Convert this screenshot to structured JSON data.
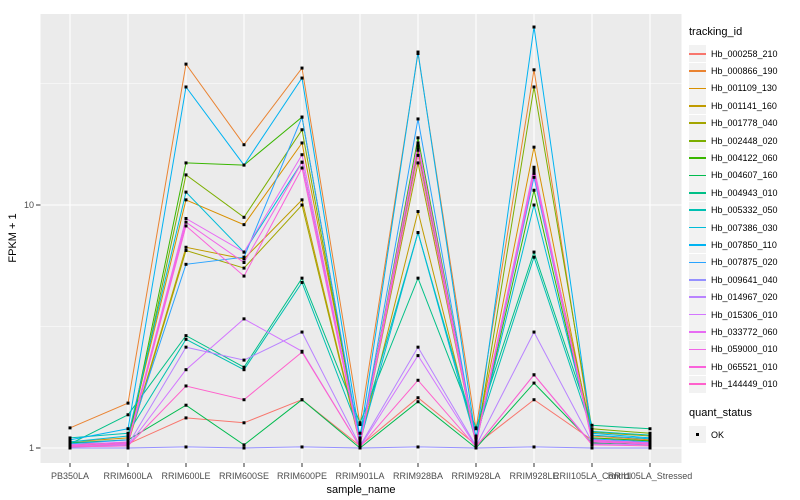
{
  "style": {
    "panel_bg": "#EBEBEB",
    "grid_color": "#FFFFFF",
    "axis_text_color": "#4D4D4D",
    "axis_title_color": "#000000",
    "tick_mark_color": "#333333",
    "legend_key_bg": "#F2F2F2",
    "point_color": "#000000"
  },
  "chart_data": {
    "type": "line",
    "xlabel": "sample_name",
    "ylabel": "FPKM + 1",
    "y_scale": "log10",
    "y_ticks": [
      1,
      10
    ],
    "y_minor_breaks": [
      3.162,
      31.62
    ],
    "ylim_log": [
      -0.062,
      1.79
    ],
    "grid": true,
    "legend_position": "right",
    "legend_title": "tracking_id",
    "point_legend_title": "quant_status",
    "point_legend_label": "OK",
    "categories": [
      "PB350LA",
      "RRIM600LA",
      "RRIM600LE",
      "RRIM600SE",
      "RRIM600PE",
      "RRIM901LA",
      "RRIM928BA",
      "RRIM928LA",
      "RRIM928LE",
      "RRII105LA_Control",
      "RRII105LA_Stressed"
    ],
    "series": [
      {
        "name": "Hb_000258_210",
        "color": "#F8766D",
        "values": [
          1.05,
          1.04,
          1.33,
          1.27,
          1.58,
          1.02,
          1.61,
          1.03,
          1.58,
          1.08,
          1.05
        ]
      },
      {
        "name": "Hb_000866_190",
        "color": "#EA8331",
        "values": [
          1.21,
          1.53,
          38.0,
          17.7,
          36.6,
          1.25,
          42.0,
          1.2,
          36.0,
          1.12,
          1.08
        ]
      },
      {
        "name": "Hb_001109_130",
        "color": "#D89000",
        "values": [
          1.06,
          1.1,
          10.5,
          8.3,
          18.0,
          1.08,
          17.0,
          1.09,
          17.3,
          1.1,
          1.07
        ]
      },
      {
        "name": "Hb_001141_160",
        "color": "#C09B00",
        "values": [
          1.03,
          1.05,
          6.7,
          6.0,
          10.5,
          1.05,
          9.4,
          1.05,
          14.0,
          1.07,
          1.05
        ]
      },
      {
        "name": "Hb_001778_040",
        "color": "#A3A500",
        "values": [
          1.02,
          1.04,
          6.5,
          5.5,
          10.0,
          1.04,
          14.9,
          1.04,
          13.5,
          1.16,
          1.12
        ]
      },
      {
        "name": "Hb_002448_020",
        "color": "#7CAE00",
        "values": [
          1.01,
          1.03,
          13.3,
          8.9,
          20.4,
          1.03,
          16.8,
          1.04,
          30.6,
          1.2,
          1.15
        ]
      },
      {
        "name": "Hb_004122_060",
        "color": "#39B600",
        "values": [
          1.02,
          1.05,
          14.9,
          14.6,
          23.0,
          1.03,
          18.9,
          1.05,
          11.5,
          1.1,
          1.07
        ]
      },
      {
        "name": "Hb_004607_160",
        "color": "#00BB4E",
        "values": [
          1.05,
          1.08,
          1.5,
          1.03,
          1.58,
          1.0,
          1.55,
          1.0,
          1.85,
          1.05,
          1.03
        ]
      },
      {
        "name": "Hb_004943_010",
        "color": "#00C087",
        "values": [
          1.04,
          1.37,
          2.9,
          2.15,
          5.0,
          1.27,
          5.0,
          1.21,
          6.4,
          1.24,
          1.2
        ]
      },
      {
        "name": "Hb_005332_050",
        "color": "#00C0B2",
        "values": [
          1.1,
          1.15,
          2.8,
          2.1,
          4.8,
          1.15,
          7.7,
          1.12,
          6.1,
          1.17,
          1.13
        ]
      },
      {
        "name": "Hb_007386_030",
        "color": "#00BCD8",
        "values": [
          1.06,
          1.12,
          11.3,
          6.4,
          15.0,
          1.06,
          7.7,
          1.06,
          10.0,
          1.13,
          1.09
        ]
      },
      {
        "name": "Hb_007850_110",
        "color": "#00B3F2",
        "values": [
          1.08,
          1.2,
          30.6,
          14.6,
          33.3,
          1.1,
          42.6,
          1.08,
          54.0,
          1.15,
          1.1
        ]
      },
      {
        "name": "Hb_007875_020",
        "color": "#29A3FF",
        "values": [
          1.04,
          1.08,
          5.7,
          6.1,
          23.0,
          1.05,
          22.6,
          1.04,
          13.0,
          1.09,
          1.06
        ]
      },
      {
        "name": "Hb_009641_040",
        "color": "#9590FF",
        "values": [
          1.0,
          1.0,
          1.01,
          1.0,
          1.01,
          1.0,
          1.01,
          1.0,
          1.01,
          1.0,
          1.0
        ]
      },
      {
        "name": "Hb_014967_020",
        "color": "#B983FF",
        "values": [
          1.02,
          1.03,
          2.6,
          2.3,
          3.0,
          1.02,
          2.6,
          1.02,
          3.0,
          1.06,
          1.04
        ]
      },
      {
        "name": "Hb_015306_010",
        "color": "#D376FF",
        "values": [
          1.01,
          1.02,
          2.1,
          3.4,
          2.5,
          1.01,
          2.4,
          1.01,
          2.0,
          1.04,
          1.03
        ]
      },
      {
        "name": "Hb_033772_060",
        "color": "#E76BF3",
        "values": [
          1.03,
          1.06,
          8.8,
          6.4,
          16.1,
          1.04,
          18.0,
          1.05,
          14.3,
          1.08,
          1.05
        ]
      },
      {
        "name": "Hb_059000_010",
        "color": "#F166E8",
        "values": [
          1.02,
          1.05,
          8.5,
          5.8,
          15.0,
          1.03,
          17.5,
          1.04,
          13.8,
          1.07,
          1.04
        ]
      },
      {
        "name": "Hb_065521_010",
        "color": "#FA62DB",
        "values": [
          1.02,
          1.04,
          8.2,
          5.1,
          14.2,
          1.03,
          16.0,
          1.03,
          13.5,
          1.06,
          1.04
        ]
      },
      {
        "name": "Hb_144449_010",
        "color": "#FF61CC",
        "values": [
          1.01,
          1.02,
          1.8,
          1.58,
          2.48,
          1.01,
          1.9,
          1.01,
          2.0,
          1.03,
          1.02
        ]
      }
    ]
  }
}
